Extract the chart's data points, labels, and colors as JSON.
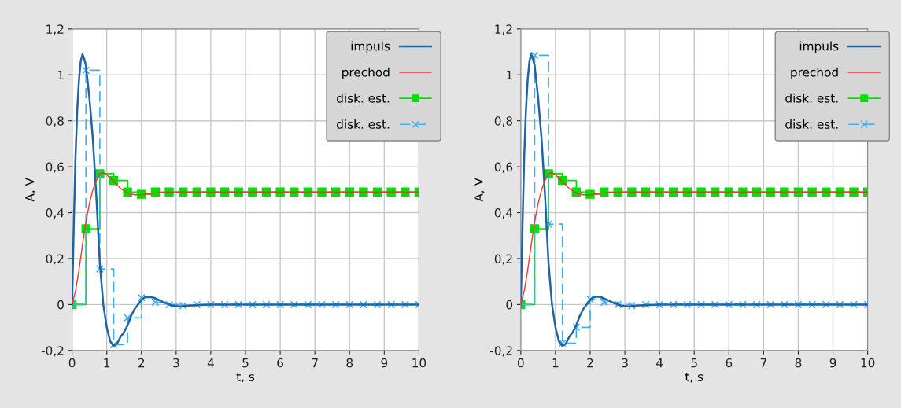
{
  "chart_data": [
    {
      "type": "line",
      "xlabel": "t, s",
      "ylabel": "A, V",
      "xlim": [
        0,
        10
      ],
      "ylim": [
        -0.2,
        1.2
      ],
      "xticks": [
        0,
        1,
        2,
        3,
        4,
        5,
        6,
        7,
        8,
        9,
        10
      ],
      "yticks": [
        {
          "value": 1.2,
          "label": "1,2"
        },
        1,
        {
          "value": 0.8,
          "label": "0,8"
        },
        {
          "value": 0.6,
          "label": "0,6"
        },
        {
          "value": 0.4,
          "label": "0,4"
        },
        {
          "value": 0.2,
          "label": "0,2"
        },
        0,
        {
          "value": -0.2,
          "label": "-0,2"
        }
      ],
      "grid": true,
      "legend": "top right",
      "series": [
        {
          "name": "impuls",
          "type": "line",
          "color": "#1f63a8",
          "marker": "none",
          "line_style": "solid",
          "x": [
            0,
            0.05,
            0.1,
            0.15,
            0.2,
            0.25,
            0.3,
            0.35,
            0.4,
            0.5,
            0.6,
            0.7,
            0.8,
            0.9,
            1.0,
            1.1,
            1.2,
            1.3,
            1.4,
            1.5,
            1.6,
            1.7,
            1.8,
            1.9,
            2.0,
            2.1,
            2.2,
            2.3,
            2.5,
            2.7,
            2.9,
            3.1,
            3.4,
            4.0,
            10
          ],
          "values": [
            0,
            0.35,
            0.65,
            0.85,
            0.98,
            1.06,
            1.09,
            1.07,
            1.04,
            0.9,
            0.72,
            0.47,
            0.18,
            0.0,
            -0.1,
            -0.16,
            -0.18,
            -0.17,
            -0.14,
            -0.12,
            -0.09,
            -0.05,
            -0.02,
            0.0,
            0.02,
            0.032,
            0.035,
            0.033,
            0.02,
            0.005,
            -0.005,
            -0.008,
            -0.004,
            0,
            0
          ]
        },
        {
          "name": "prechod",
          "type": "line",
          "color": "#ff3030",
          "marker": "none",
          "line_style": "solid",
          "x": [
            0,
            0.1,
            0.2,
            0.3,
            0.4,
            0.5,
            0.6,
            0.7,
            0.8,
            0.9,
            1.0,
            1.1,
            1.2,
            1.3,
            1.4,
            1.5,
            1.6,
            1.8,
            2.0,
            2.2,
            2.5,
            3,
            10
          ],
          "values": [
            0,
            0.06,
            0.15,
            0.26,
            0.36,
            0.44,
            0.5,
            0.54,
            0.57,
            0.575,
            0.565,
            0.55,
            0.535,
            0.52,
            0.505,
            0.495,
            0.485,
            0.478,
            0.478,
            0.483,
            0.488,
            0.49,
            0.49
          ]
        },
        {
          "name": "disk. est.",
          "type": "step",
          "color": "#00e000",
          "marker": "square",
          "line_style": "solid",
          "x": [
            0,
            0.4,
            0.8,
            1.2,
            1.6,
            2.0,
            2.4,
            2.8,
            3.2,
            3.6,
            4.0,
            4.4,
            4.8,
            5.2,
            5.6,
            6.0,
            6.4,
            6.8,
            7.2,
            7.6,
            8.0,
            8.4,
            8.8,
            9.2,
            9.6,
            10
          ],
          "values": [
            0,
            0.33,
            0.57,
            0.54,
            0.49,
            0.48,
            0.49,
            0.49,
            0.49,
            0.49,
            0.49,
            0.49,
            0.49,
            0.49,
            0.49,
            0.49,
            0.49,
            0.49,
            0.49,
            0.49,
            0.49,
            0.49,
            0.49,
            0.49,
            0.49,
            0.49
          ]
        },
        {
          "name": "disk. est.",
          "type": "step",
          "color": "#3cb0f0",
          "marker": "cross",
          "line_style": "dashed",
          "x": [
            0,
            0.4,
            0.8,
            1.2,
            1.6,
            2.0,
            2.4,
            2.8,
            3.2,
            3.6,
            4.0,
            4.4,
            4.8,
            5.2,
            5.6,
            6.0,
            6.4,
            6.8,
            7.2,
            7.6,
            8.0,
            8.4,
            8.8,
            9.2,
            9.6,
            10
          ],
          "values": [
            0,
            1.02,
            0.155,
            -0.175,
            -0.058,
            0.03,
            0.01,
            0,
            -0.005,
            0,
            0,
            0,
            0,
            0,
            0,
            0,
            0,
            0,
            0,
            0,
            0,
            0,
            0,
            0,
            0,
            0
          ]
        }
      ]
    },
    {
      "type": "line",
      "xlabel": "t, s",
      "ylabel": "A, V",
      "xlim": [
        0,
        10
      ],
      "ylim": [
        -0.2,
        1.2
      ],
      "xticks": [
        0,
        1,
        2,
        3,
        4,
        5,
        6,
        7,
        8,
        9,
        10
      ],
      "yticks": [
        {
          "value": 1.2,
          "label": "1,2"
        },
        1,
        {
          "value": 0.8,
          "label": "0,8"
        },
        {
          "value": 0.6,
          "label": "0,6"
        },
        {
          "value": 0.4,
          "label": "0,4"
        },
        {
          "value": 0.2,
          "label": "0,2"
        },
        0,
        {
          "value": -0.2,
          "label": "-0,2"
        }
      ],
      "grid": true,
      "legend": "top right",
      "series": [
        {
          "name": "impuls",
          "type": "line",
          "color": "#1f63a8",
          "marker": "none",
          "line_style": "solid",
          "x": [
            0,
            0.05,
            0.1,
            0.15,
            0.2,
            0.25,
            0.3,
            0.35,
            0.4,
            0.5,
            0.6,
            0.7,
            0.8,
            0.9,
            1.0,
            1.1,
            1.2,
            1.3,
            1.4,
            1.5,
            1.6,
            1.7,
            1.8,
            1.9,
            2.0,
            2.1,
            2.2,
            2.3,
            2.5,
            2.7,
            2.9,
            3.1,
            3.4,
            4.0,
            10
          ],
          "values": [
            0,
            0.35,
            0.65,
            0.85,
            0.98,
            1.06,
            1.09,
            1.07,
            1.04,
            0.9,
            0.72,
            0.47,
            0.18,
            0.0,
            -0.1,
            -0.16,
            -0.18,
            -0.17,
            -0.14,
            -0.12,
            -0.09,
            -0.05,
            -0.02,
            0.0,
            0.02,
            0.032,
            0.035,
            0.033,
            0.02,
            0.005,
            -0.005,
            -0.008,
            -0.004,
            0,
            0
          ]
        },
        {
          "name": "prechod",
          "type": "line",
          "color": "#ff3030",
          "marker": "none",
          "line_style": "solid",
          "x": [
            0,
            0.1,
            0.2,
            0.3,
            0.4,
            0.5,
            0.6,
            0.7,
            0.8,
            0.9,
            1.0,
            1.1,
            1.2,
            1.3,
            1.4,
            1.5,
            1.6,
            1.8,
            2.0,
            2.2,
            2.5,
            3,
            10
          ],
          "values": [
            0,
            0.06,
            0.15,
            0.26,
            0.36,
            0.44,
            0.5,
            0.54,
            0.57,
            0.575,
            0.565,
            0.55,
            0.535,
            0.52,
            0.505,
            0.495,
            0.485,
            0.478,
            0.478,
            0.483,
            0.488,
            0.49,
            0.49
          ]
        },
        {
          "name": "disk. est.",
          "type": "step",
          "color": "#00e000",
          "marker": "square",
          "line_style": "solid",
          "x": [
            0,
            0.4,
            0.8,
            1.2,
            1.6,
            2.0,
            2.4,
            2.8,
            3.2,
            3.6,
            4.0,
            4.4,
            4.8,
            5.2,
            5.6,
            6.0,
            6.4,
            6.8,
            7.2,
            7.6,
            8.0,
            8.4,
            8.8,
            9.2,
            9.6,
            10
          ],
          "values": [
            0,
            0.33,
            0.57,
            0.54,
            0.49,
            0.48,
            0.49,
            0.49,
            0.49,
            0.49,
            0.49,
            0.49,
            0.49,
            0.49,
            0.49,
            0.49,
            0.49,
            0.49,
            0.49,
            0.49,
            0.49,
            0.49,
            0.49,
            0.49,
            0.49,
            0.49
          ]
        },
        {
          "name": "disk. est.",
          "type": "step",
          "color": "#3cb0f0",
          "marker": "cross",
          "line_style": "dashed",
          "x": [
            0,
            0.4,
            0.8,
            1.2,
            1.6,
            2.0,
            2.4,
            2.8,
            3.2,
            3.6,
            4.0,
            4.4,
            4.8,
            5.2,
            5.6,
            6.0,
            6.4,
            6.8,
            7.2,
            7.6,
            8.0,
            8.4,
            8.8,
            9.2,
            9.6,
            10
          ],
          "values": [
            0,
            1.085,
            0.35,
            -0.168,
            -0.099,
            0.023,
            0.01,
            0,
            -0.005,
            0,
            0,
            0,
            0,
            0,
            0,
            0,
            0,
            0,
            0,
            0,
            0,
            0,
            0,
            0,
            0,
            0
          ]
        }
      ]
    }
  ]
}
